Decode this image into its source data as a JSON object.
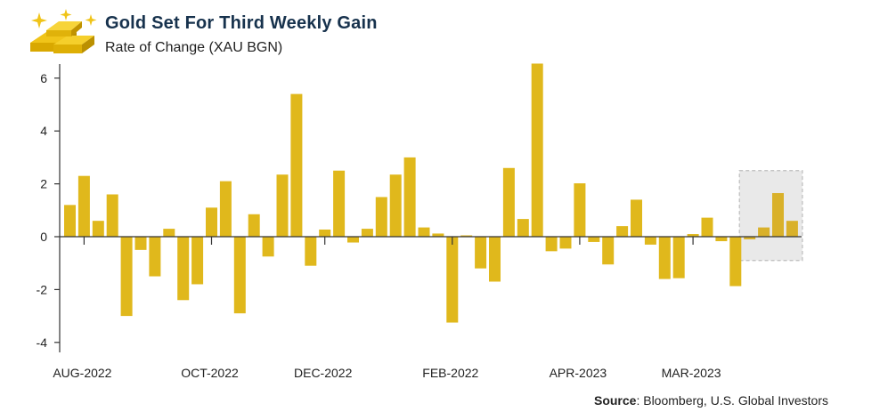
{
  "header": {
    "title": "Gold Set For Third Weekly Gain",
    "subtitle": "Rate of Change (XAU BGN)"
  },
  "source": {
    "label": "Source",
    "text": ": Bloomberg, U.S. Global Investors"
  },
  "colors": {
    "bar": "#e0b81c",
    "highlight_bar": "#d9b12a",
    "highlight_box": "#e9e9e9",
    "axis": "#333333",
    "title": "#17324d"
  },
  "chart_data": {
    "type": "bar",
    "title": "Gold Set For Third Weekly Gain",
    "subtitle": "Rate of Change (XAU BGN)",
    "xlabel": "",
    "ylabel": "",
    "ylim": [
      -4.5,
      6.6
    ],
    "yticks": [
      -4,
      -2,
      0,
      2,
      4,
      6
    ],
    "grid": false,
    "x_tick_labels": [
      {
        "label": "AUG-2022",
        "index": 1
      },
      {
        "label": "OCT-2022",
        "index": 10
      },
      {
        "label": "DEC-2022",
        "index": 18
      },
      {
        "label": "FEB-2022",
        "index": 27
      },
      {
        "label": "APR-2023",
        "index": 36
      },
      {
        "label": "MAR-2023",
        "index": 44
      }
    ],
    "values": [
      1.2,
      2.3,
      0.6,
      1.6,
      -3.0,
      -0.5,
      -1.5,
      0.3,
      -2.4,
      -1.8,
      1.1,
      2.1,
      -2.9,
      0.85,
      -0.75,
      2.35,
      5.4,
      -1.1,
      0.27,
      2.5,
      -0.22,
      0.3,
      1.5,
      2.35,
      3.0,
      0.35,
      0.12,
      -3.25,
      0.05,
      -1.2,
      -1.7,
      2.6,
      0.67,
      6.55,
      -0.55,
      -0.45,
      2.02,
      -0.2,
      -1.05,
      0.4,
      1.4,
      -0.3,
      -1.6,
      -1.57,
      0.1,
      0.72,
      -0.17,
      -1.87,
      -0.1,
      0.35,
      1.65,
      0.6
    ],
    "highlight_range": [
      48,
      51
    ]
  }
}
